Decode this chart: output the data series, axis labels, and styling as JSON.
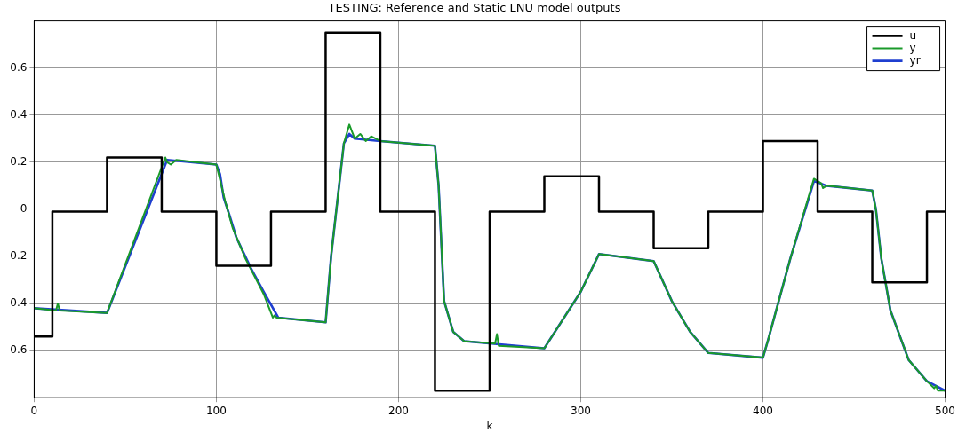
{
  "chart_data": {
    "type": "line",
    "title": "TESTING: Reference and Static LNU model outputs",
    "xlabel": "k",
    "xlim": [
      0,
      500
    ],
    "xticks": [
      0,
      100,
      200,
      300,
      400,
      500
    ],
    "ylim": [
      -0.8,
      0.8
    ],
    "yticks": [
      -0.6,
      -0.4,
      -0.2,
      0.0,
      0.2,
      0.4,
      0.6
    ],
    "grid": true,
    "legend": "top right",
    "line_style": "solid",
    "marker": "none",
    "series": [
      {
        "name": "u",
        "type": "step",
        "color": "#000000",
        "x": [
          0,
          10,
          40,
          70,
          100,
          130,
          160,
          190,
          220,
          250,
          280,
          310,
          340,
          370,
          400,
          430,
          460,
          490,
          500
        ],
        "values": [
          -0.54,
          -0.01,
          0.22,
          -0.01,
          -0.24,
          -0.01,
          0.75,
          -0.01,
          -0.77,
          -0.01,
          0.14,
          -0.01,
          -0.165,
          -0.01,
          0.29,
          -0.01,
          -0.31,
          -0.01,
          -0.01
        ]
      },
      {
        "name": "y",
        "color": "#1a9a2a",
        "x": [
          0,
          12,
          13,
          14,
          40,
          72,
          73,
          75,
          78,
          100,
          105,
          109,
          116,
          126,
          131,
          132,
          133,
          160,
          163,
          170,
          173,
          176,
          179,
          182,
          185,
          190,
          220,
          222,
          225,
          230,
          236,
          253,
          254,
          255,
          280,
          300,
          310,
          340,
          350,
          360,
          370,
          400,
          403,
          415,
          428,
          432,
          433,
          435,
          460,
          462,
          465,
          470,
          480,
          490,
          494,
          495,
          496,
          500
        ],
        "values": [
          -0.42,
          -0.43,
          -0.4,
          -0.43,
          -0.44,
          0.22,
          0.2,
          0.19,
          0.21,
          0.19,
          0.03,
          -0.08,
          -0.21,
          -0.36,
          -0.46,
          -0.45,
          -0.46,
          -0.48,
          -0.2,
          0.28,
          0.36,
          0.3,
          0.32,
          0.29,
          0.31,
          0.29,
          0.27,
          0.1,
          -0.39,
          -0.52,
          -0.56,
          -0.57,
          -0.53,
          -0.58,
          -0.59,
          -0.35,
          -0.19,
          -0.22,
          -0.39,
          -0.52,
          -0.61,
          -0.63,
          -0.55,
          -0.21,
          0.13,
          0.11,
          0.09,
          0.1,
          0.08,
          0.0,
          -0.21,
          -0.43,
          -0.64,
          -0.73,
          -0.76,
          -0.75,
          -0.77,
          -0.77
        ]
      },
      {
        "name": "yr",
        "color": "#1f3fd0",
        "x": [
          0,
          40,
          73,
          100,
          102,
          104,
          107,
          111,
          119,
          126,
          134,
          160,
          163,
          170,
          173,
          176,
          190,
          220,
          222,
          225,
          230,
          236,
          280,
          300,
          310,
          340,
          350,
          360,
          370,
          400,
          403,
          415,
          428,
          435,
          460,
          462,
          465,
          470,
          480,
          490,
          500
        ],
        "values": [
          -0.42,
          -0.44,
          0.21,
          0.19,
          0.15,
          0.05,
          -0.02,
          -0.12,
          -0.25,
          -0.35,
          -0.46,
          -0.48,
          -0.2,
          0.28,
          0.32,
          0.3,
          0.29,
          0.27,
          0.1,
          -0.39,
          -0.52,
          -0.56,
          -0.59,
          -0.35,
          -0.19,
          -0.22,
          -0.39,
          -0.52,
          -0.61,
          -0.63,
          -0.55,
          -0.21,
          0.12,
          0.1,
          0.08,
          0.0,
          -0.21,
          -0.43,
          -0.64,
          -0.73,
          -0.77
        ]
      }
    ]
  }
}
